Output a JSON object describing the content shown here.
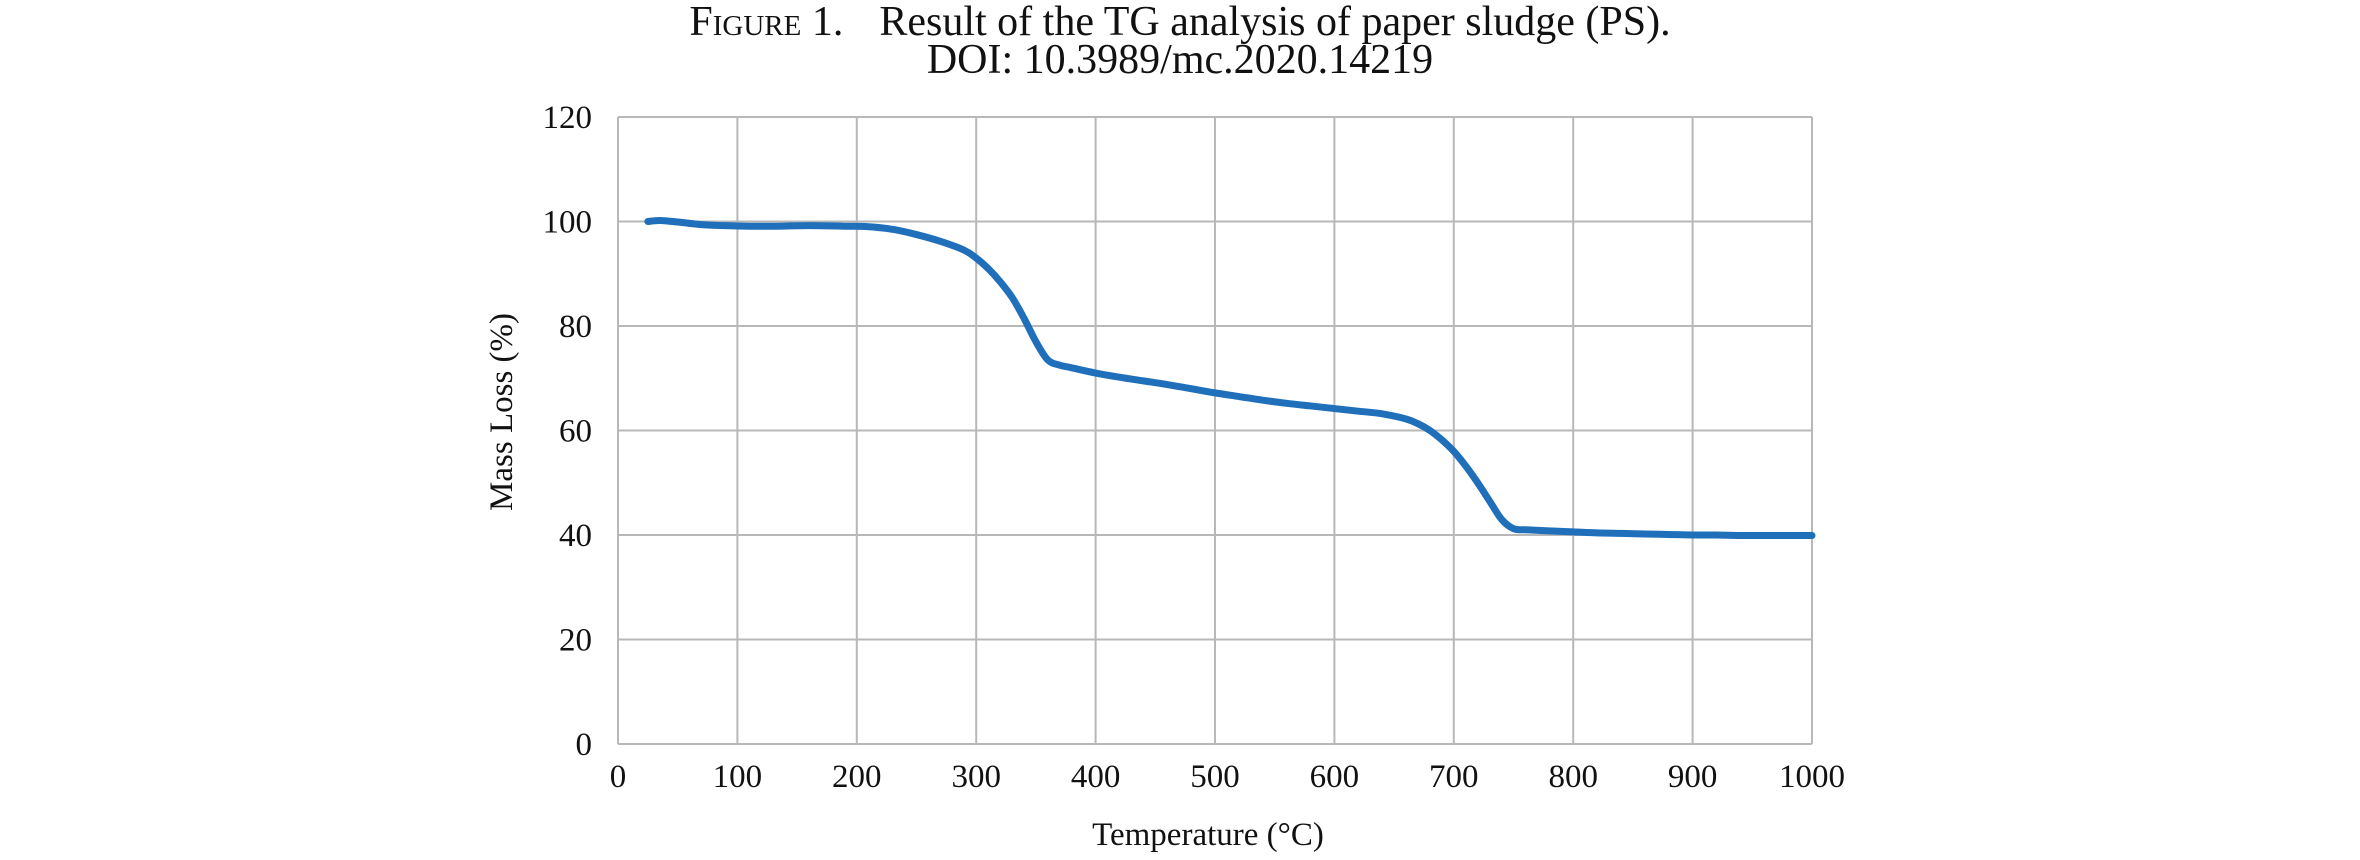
{
  "figure": {
    "label": "Figure 1.",
    "title": "Result of the TG analysis of paper sludge (PS).",
    "doi_label": "DOI",
    "doi_value": ": 10.3989/mc.2020.14219"
  },
  "colors": {
    "series": "#1F6FBA",
    "grid": "#B8B8B8",
    "text": "#111111"
  },
  "chart_data": {
    "type": "line",
    "title": "",
    "xlabel": "Temperature (°C)",
    "ylabel": "Mass Loss (%)",
    "xlim": [
      0,
      1000
    ],
    "ylim": [
      0,
      120
    ],
    "xticks": [
      0,
      100,
      200,
      300,
      400,
      500,
      600,
      700,
      800,
      900,
      1000
    ],
    "yticks": [
      0,
      20,
      40,
      60,
      80,
      100,
      120
    ],
    "grid": true,
    "legend": "none",
    "series": [
      {
        "x": [
          25,
          35,
          50,
          70,
          90,
          110,
          130,
          160,
          190,
          210,
          230,
          250,
          270,
          290,
          300,
          310,
          320,
          330,
          340,
          350,
          360,
          370,
          380,
          400,
          420,
          440,
          460,
          480,
          500,
          520,
          540,
          560,
          580,
          600,
          620,
          640,
          660,
          670,
          680,
          690,
          700,
          710,
          720,
          730,
          740,
          750,
          760,
          780,
          800,
          820,
          840,
          860,
          880,
          900,
          920,
          940,
          960,
          980,
          1000
        ],
        "y": [
          100.0,
          100.2,
          99.9,
          99.4,
          99.2,
          99.1,
          99.1,
          99.2,
          99.1,
          99.0,
          98.5,
          97.5,
          96.2,
          94.5,
          93.0,
          91.0,
          88.5,
          85.5,
          81.5,
          77.0,
          73.5,
          72.5,
          72.0,
          71.0,
          70.2,
          69.5,
          68.8,
          68.0,
          67.2,
          66.5,
          65.8,
          65.2,
          64.7,
          64.2,
          63.7,
          63.2,
          62.2,
          61.3,
          60.0,
          58.2,
          56.0,
          53.2,
          50.0,
          46.5,
          43.0,
          41.2,
          41.0,
          40.8,
          40.6,
          40.4,
          40.3,
          40.2,
          40.1,
          40.0,
          40.0,
          39.9,
          39.9,
          39.9,
          39.9
        ]
      }
    ]
  }
}
